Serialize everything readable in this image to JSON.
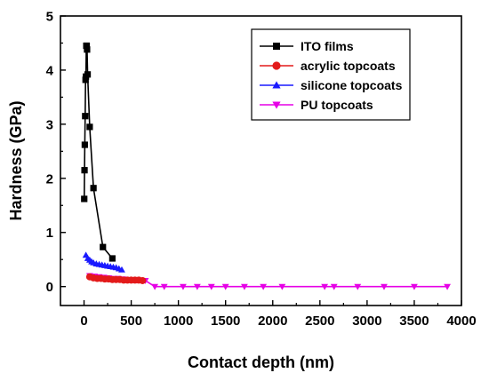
{
  "chart_data": {
    "type": "line",
    "xlabel": "Contact depth (nm)",
    "ylabel": "Hardness (GPa)",
    "xlim": [
      -250,
      4000
    ],
    "ylim": [
      -0.35,
      5
    ],
    "xticks": [
      0,
      500,
      1000,
      1500,
      2000,
      2500,
      3000,
      3500,
      4000
    ],
    "yticks": [
      0,
      1,
      2,
      3,
      4,
      5
    ],
    "grid": false,
    "legend_position": "top-right",
    "series": [
      {
        "name": "ITO films",
        "color": "#000000",
        "marker": "square",
        "line": true,
        "points": [
          [
            2,
            1.62
          ],
          [
            5,
            2.15
          ],
          [
            8,
            2.62
          ],
          [
            12,
            3.15
          ],
          [
            16,
            3.82
          ],
          [
            20,
            3.88
          ],
          [
            24,
            4.45
          ],
          [
            28,
            4.45
          ],
          [
            32,
            4.38
          ],
          [
            38,
            3.92
          ],
          [
            60,
            2.95
          ],
          [
            100,
            1.82
          ],
          [
            200,
            0.73
          ],
          [
            300,
            0.52
          ]
        ]
      },
      {
        "name": "acrylic topcoats",
        "color": "#e31a1a",
        "marker": "circle",
        "line": false,
        "points": [
          [
            60,
            0.18
          ],
          [
            100,
            0.16
          ],
          [
            140,
            0.15
          ],
          [
            180,
            0.15
          ],
          [
            220,
            0.14
          ],
          [
            260,
            0.14
          ],
          [
            300,
            0.13
          ],
          [
            340,
            0.13
          ],
          [
            380,
            0.13
          ],
          [
            420,
            0.12
          ],
          [
            460,
            0.12
          ],
          [
            500,
            0.12
          ],
          [
            540,
            0.12
          ],
          [
            580,
            0.12
          ],
          [
            620,
            0.11
          ]
        ]
      },
      {
        "name": "silicone topcoats",
        "color": "#1a1aff",
        "marker": "triangle-up",
        "line": false,
        "points": [
          [
            20,
            0.58
          ],
          [
            40,
            0.52
          ],
          [
            60,
            0.49
          ],
          [
            80,
            0.46
          ],
          [
            100,
            0.44
          ],
          [
            130,
            0.42
          ],
          [
            160,
            0.41
          ],
          [
            190,
            0.4
          ],
          [
            220,
            0.39
          ],
          [
            250,
            0.38
          ],
          [
            280,
            0.37
          ],
          [
            310,
            0.36
          ],
          [
            340,
            0.35
          ],
          [
            370,
            0.33
          ],
          [
            400,
            0.31
          ]
        ]
      },
      {
        "name": "PU topcoats",
        "color": "#e600e6",
        "marker": "triangle-down",
        "line": true,
        "points": [
          [
            60,
            0.2
          ],
          [
            110,
            0.19
          ],
          [
            160,
            0.18
          ],
          [
            210,
            0.17
          ],
          [
            260,
            0.16
          ],
          [
            310,
            0.15
          ],
          [
            360,
            0.15
          ],
          [
            410,
            0.14
          ],
          [
            460,
            0.13
          ],
          [
            510,
            0.12
          ],
          [
            560,
            0.12
          ],
          [
            610,
            0.11
          ],
          [
            650,
            0.11
          ],
          [
            750,
            0
          ],
          [
            850,
            0
          ],
          [
            1050,
            0
          ],
          [
            1200,
            0
          ],
          [
            1350,
            0
          ],
          [
            1500,
            0
          ],
          [
            1700,
            0
          ],
          [
            1900,
            0
          ],
          [
            2100,
            0
          ],
          [
            2550,
            0
          ],
          [
            2650,
            0
          ],
          [
            2900,
            0
          ],
          [
            3180,
            0
          ],
          [
            3500,
            0
          ],
          [
            3850,
            0
          ]
        ]
      }
    ]
  }
}
